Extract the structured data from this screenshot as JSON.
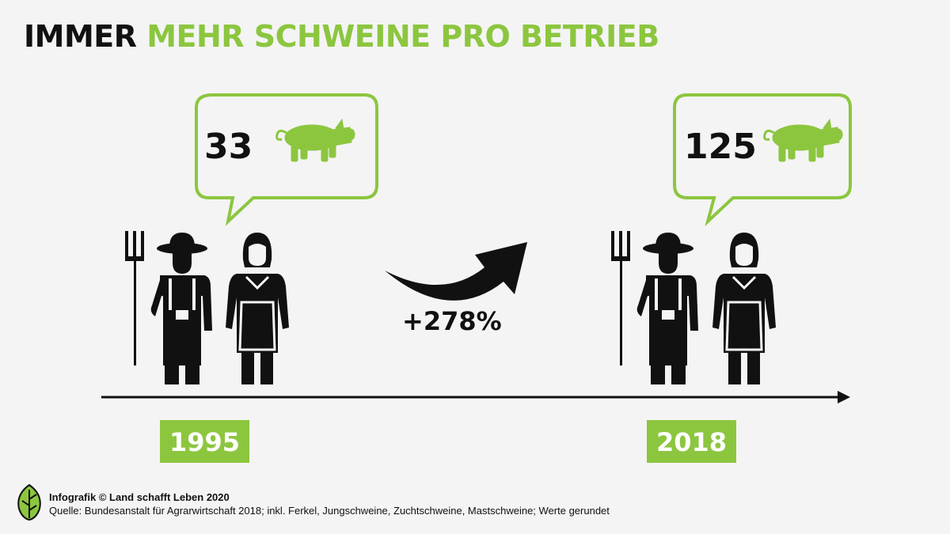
{
  "title": {
    "part1": "IMMER",
    "part2": "MEHR SCHWEINE PRO BETRIEB"
  },
  "colors": {
    "accent": "#8cc63f",
    "dark": "#111111",
    "background": "#f4f4f4"
  },
  "chart_data": {
    "type": "pictogram-comparison",
    "categories": [
      "1995",
      "2018"
    ],
    "values": [
      33,
      125
    ],
    "unit_icon": "pig-icon",
    "change_label": "+278%"
  },
  "footer": {
    "credit": "Infografik © Land schafft Leben 2020",
    "source": "Quelle: Bundesanstalt für Agrarwirtschaft 2018; inkl. Ferkel, Jungschweine, Zuchtschweine, Mastschweine; Werte gerundet"
  }
}
